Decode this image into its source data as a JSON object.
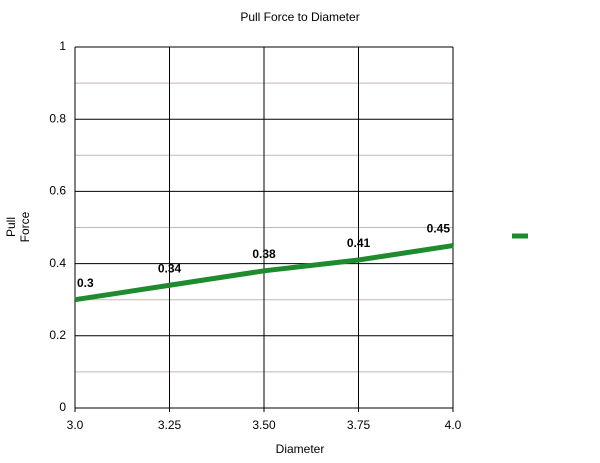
{
  "chart_data": {
    "type": "line",
    "title": "Pull Force to Diameter",
    "x_label": "Diameter",
    "y_label": "Pull Force",
    "x": [
      3,
      3.25,
      3.5,
      3.75,
      4
    ],
    "series": [
      {
        "color": "#1e8c2e",
        "values": [
          0.3,
          0.34,
          0.38,
          0.41,
          0.45
        ]
      }
    ],
    "xlim": [
      3,
      4
    ],
    "xticks": [
      {
        "value": 3,
        "label": "3.0"
      },
      3.25,
      {
        "value": 3.5,
        "label": "3.50"
      },
      3.75,
      {
        "value": 4,
        "label": "4.0"
      }
    ],
    "ylim": [
      0,
      1
    ],
    "yticks": [
      0,
      0.2,
      0.4,
      0.6,
      0.8,
      1
    ],
    "minor_yticks": [
      0.1,
      0.3,
      0.5,
      0.7,
      0.9
    ],
    "grid": true,
    "data_labels": true
  }
}
